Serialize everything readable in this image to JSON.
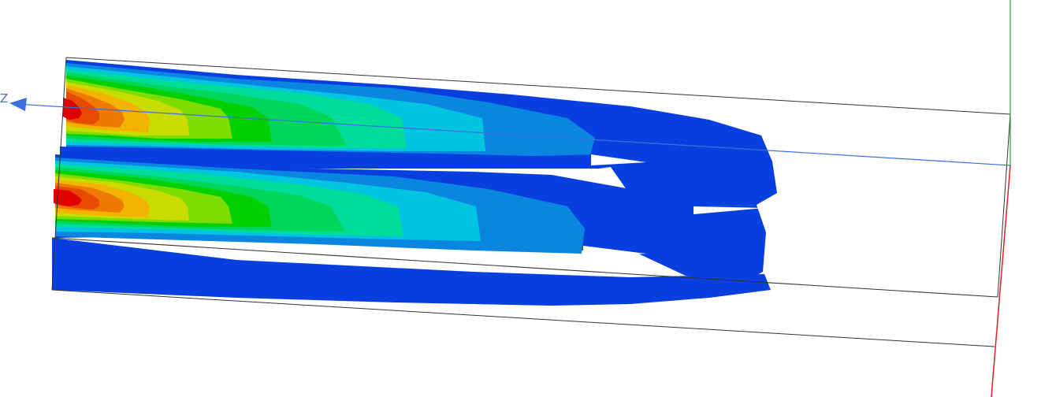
{
  "viewport": {
    "axes": {
      "z_label": "Z",
      "z_color": "#3a6fe0",
      "y_color": "#2e9a2e",
      "x_color": "#e02020"
    },
    "colormap": [
      "#0840e0",
      "#0a86e0",
      "#00c4e0",
      "#00dc9a",
      "#00d75a",
      "#00d000",
      "#7fdc00",
      "#c8dc00",
      "#f2b400",
      "#ef7a00",
      "#e84a00",
      "#e00000"
    ]
  }
}
